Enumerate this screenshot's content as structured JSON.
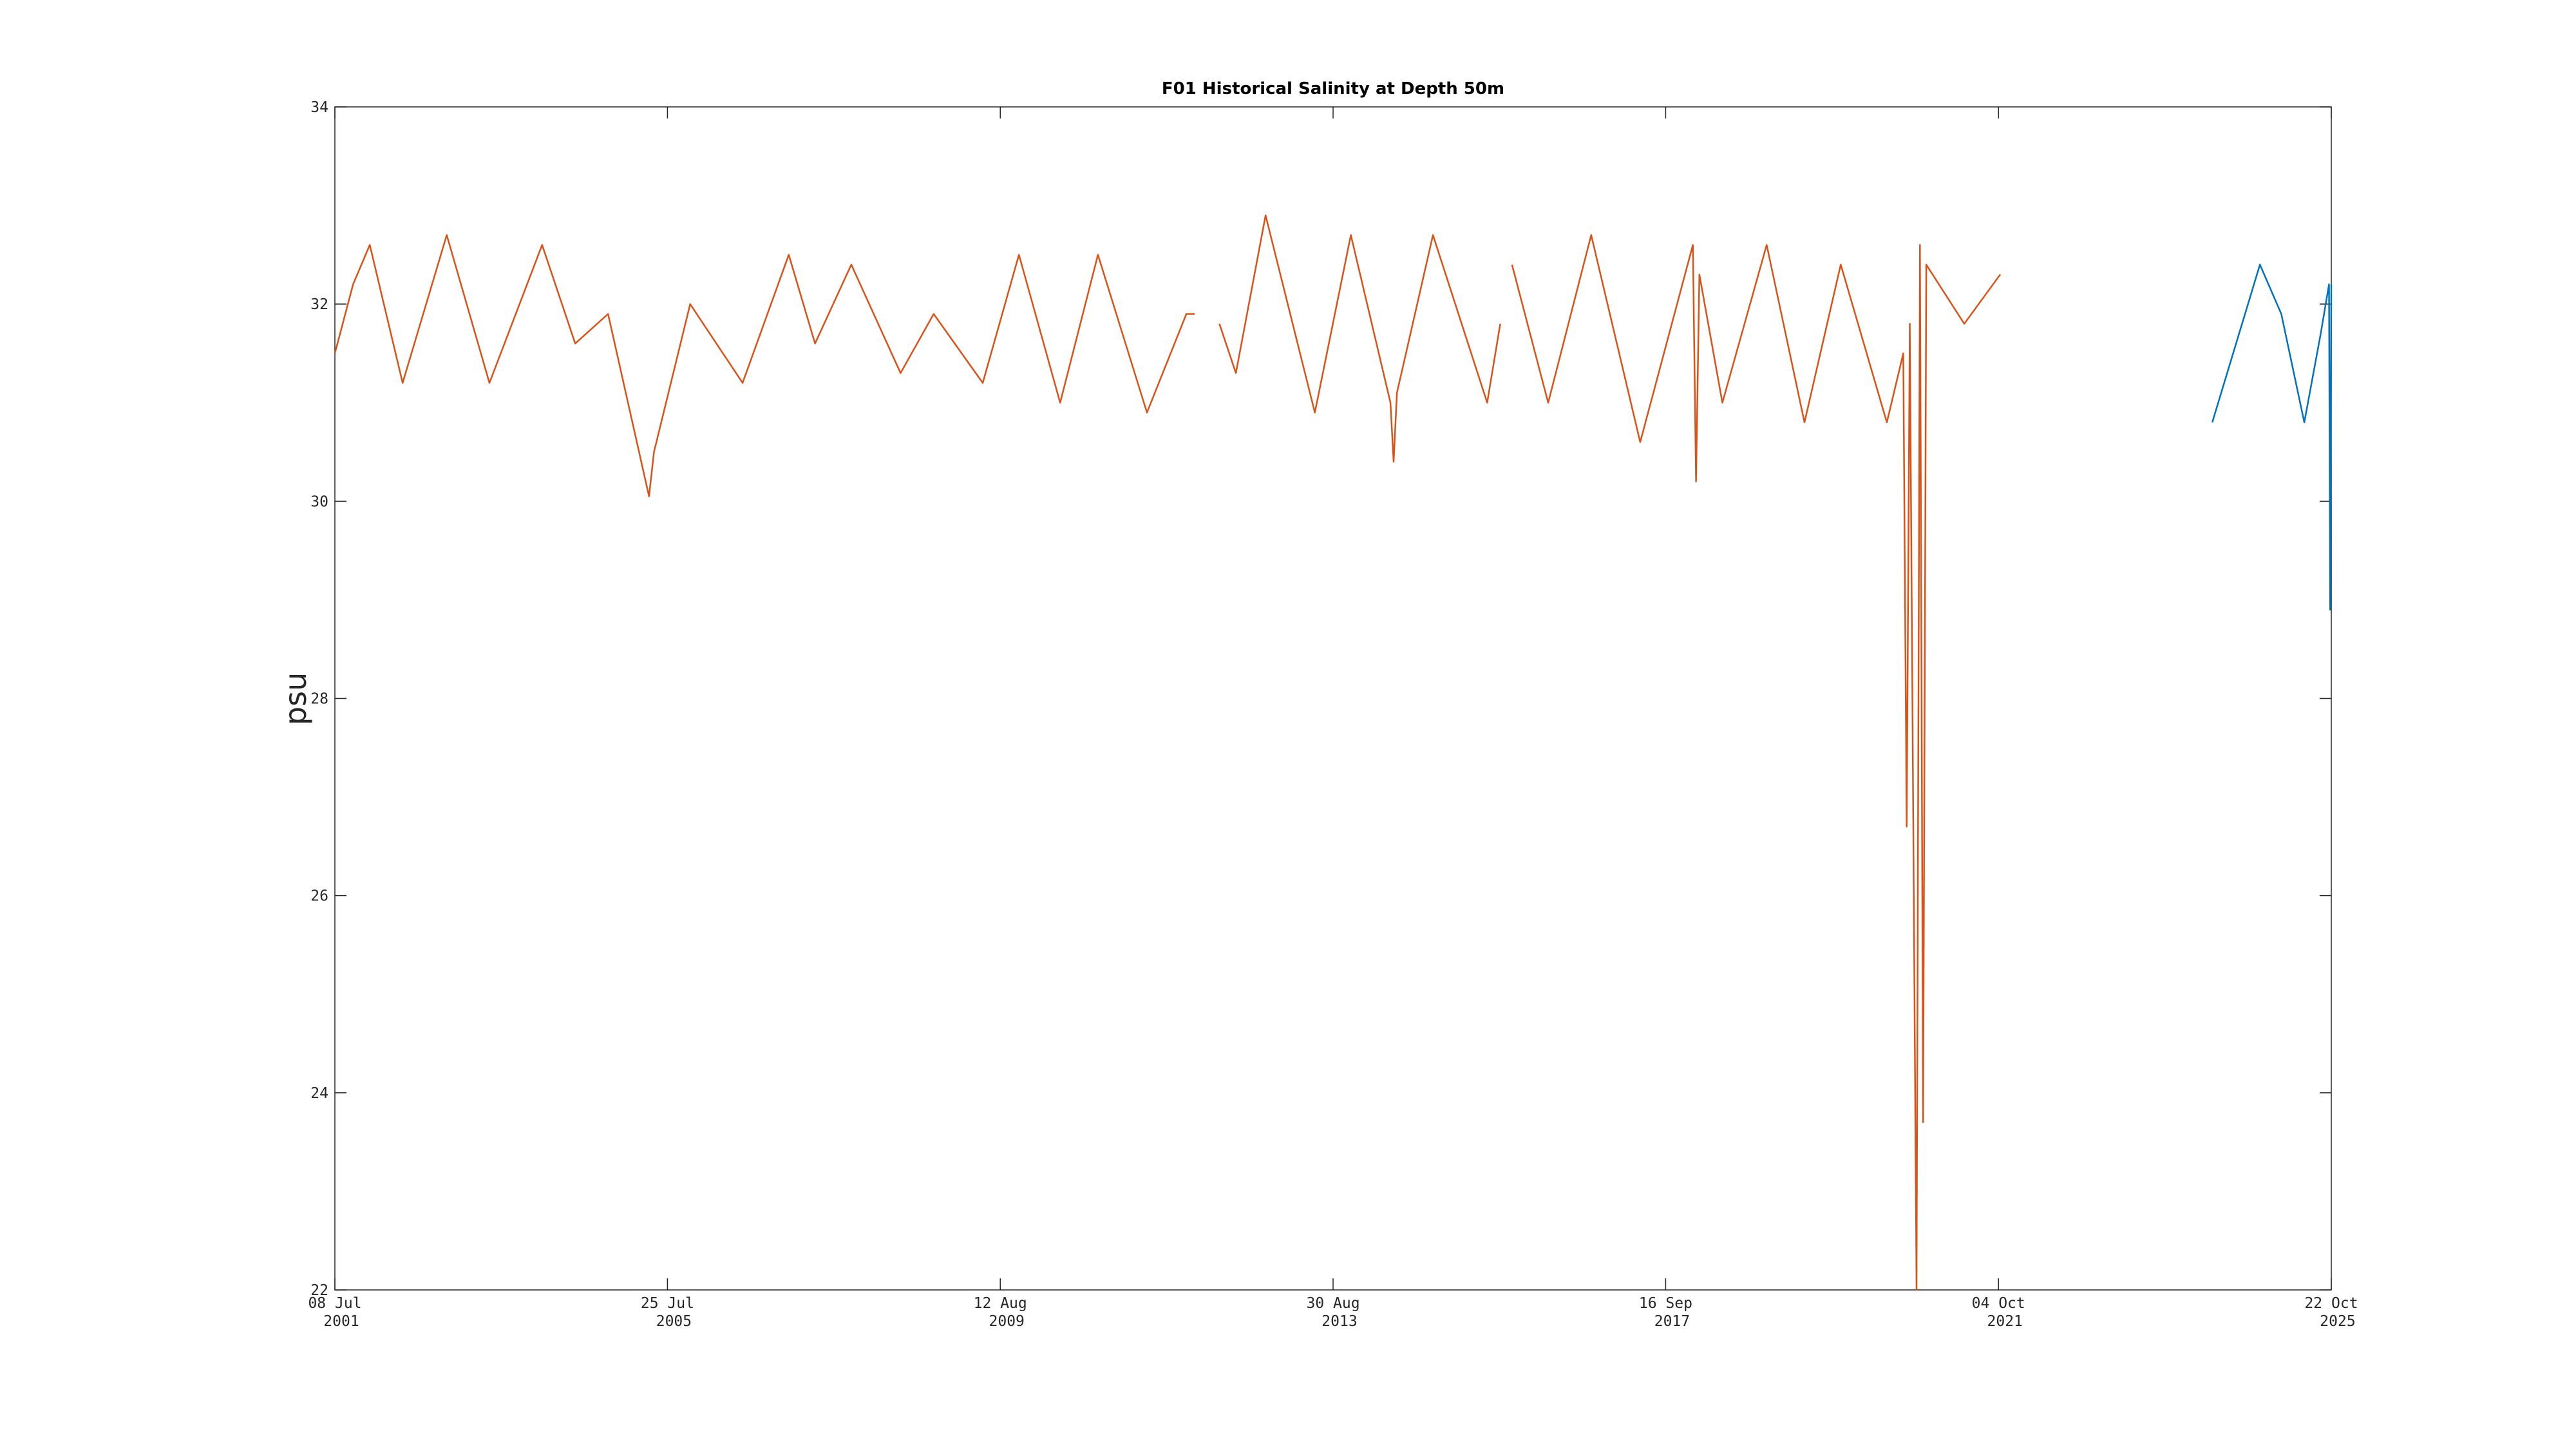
{
  "chart_data": {
    "type": "line",
    "title": "F01 Historical Salinity at Depth 50m",
    "y_label": "psu",
    "xlim": [
      "2001-07-08",
      "2025-10-22"
    ],
    "xticks": [
      {
        "value": "2001-07-08",
        "label": [
          "08 Jul",
          "2001"
        ]
      },
      {
        "value": "2005-07-25",
        "label": [
          "25 Jul",
          "2005"
        ]
      },
      {
        "value": "2009-08-12",
        "label": [
          "12 Aug",
          "2009"
        ]
      },
      {
        "value": "2013-08-30",
        "label": [
          "30 Aug",
          "2013"
        ]
      },
      {
        "value": "2017-09-16",
        "label": [
          "16 Sep",
          "2017"
        ]
      },
      {
        "value": "2021-10-04",
        "label": [
          "04 Oct",
          "2021"
        ]
      },
      {
        "value": "2025-10-22",
        "label": [
          "22 Oct",
          "2025"
        ]
      }
    ],
    "ylim": [
      22,
      34
    ],
    "yticks": [
      22,
      24,
      26,
      28,
      30,
      32,
      34
    ],
    "grid": false,
    "series": [
      {
        "color": "#d95319",
        "x": [
          "2001-07-08",
          "2001-09-27",
          "2001-12-10",
          "2002-05-05",
          "2002-11-17",
          "2003-05-26",
          "2004-01-15",
          "2004-06-10",
          "2004-11-03",
          "2005-05-04",
          "2005-05-26",
          "2005-11-03",
          "2006-06-24",
          "2007-01-15",
          "2007-05-12",
          "2007-10-20",
          "2008-05-26",
          "2008-10-20",
          "2009-05-26",
          "2009-11-03",
          "2010-05-05",
          "2010-10-20",
          "2011-05-26",
          "2011-11-17",
          "2011-12-24",
          "2012-02-15",
          "2012-04-12",
          "2012-06-24",
          "2012-11-03",
          "2013-06-10",
          "2013-11-17",
          "2014-05-12",
          "2014-05-26",
          "2014-06-10",
          "2014-11-17",
          "2015-07-16",
          "2015-09-12",
          "2015-10-10",
          "2015-11-03",
          "2016-04-12",
          "2016-10-20",
          "2017-05-26",
          "2018-01-15",
          "2018-01-29",
          "2018-02-13",
          "2018-05-26",
          "2018-12-09",
          "2019-05-26",
          "2019-11-03",
          "2020-05-26",
          "2020-08-07",
          "2020-08-22",
          "2020-09-05",
          "2020-10-05",
          "2020-10-20",
          "2020-11-03",
          "2020-11-17",
          "2021-05-05",
          "2021-10-12"
        ],
        "values": [
          31.5,
          32.2,
          32.6,
          31.2,
          32.7,
          31.2,
          32.6,
          31.6,
          31.9,
          30.05,
          30.5,
          32.0,
          31.2,
          32.5,
          31.6,
          32.4,
          31.3,
          31.9,
          31.2,
          32.5,
          31.0,
          32.5,
          30.9,
          31.9,
          31.9,
          null,
          31.8,
          31.3,
          32.9,
          30.9,
          32.7,
          31.0,
          30.4,
          31.1,
          32.7,
          31.0,
          31.8,
          null,
          32.4,
          31.0,
          32.7,
          30.6,
          32.6,
          30.2,
          32.3,
          31.0,
          32.6,
          30.8,
          32.4,
          30.8,
          31.5,
          26.7,
          31.8,
          22.0,
          32.6,
          23.7,
          32.4,
          31.8,
          32.3
        ]
      },
      {
        "color": "#0072bd",
        "x": [
          "2024-05-11",
          "2024-12-09",
          "2025-03-14",
          "2025-06-24",
          "2025-09-05",
          "2025-10-12",
          "2025-10-17",
          "2025-10-22"
        ],
        "values": [
          30.8,
          32.4,
          31.9,
          30.8,
          31.7,
          32.2,
          28.9,
          32.2
        ]
      }
    ]
  }
}
